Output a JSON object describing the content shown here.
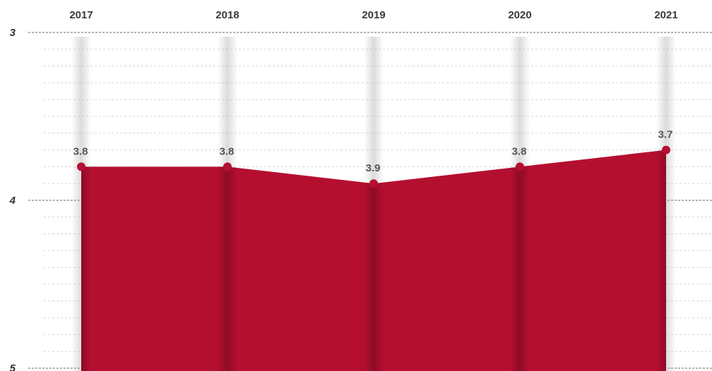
{
  "chart_data": {
    "type": "area",
    "categories": [
      "2017",
      "2018",
      "2019",
      "2020",
      "2021"
    ],
    "series": [
      {
        "values": [
          3.8,
          3.8,
          3.9,
          3.8,
          3.7
        ]
      }
    ],
    "data_labels": [
      "3.8",
      "3.8",
      "3.9",
      "3.8",
      "3.7"
    ],
    "y_ticks": [
      "3",
      "4",
      "5"
    ],
    "ylim": [
      3,
      5
    ],
    "y_inverted": true,
    "x_axis_position": "top",
    "grid": true,
    "area_color": "#b50f30",
    "marker_color": "#b50f30",
    "title": "",
    "xlabel": "",
    "ylabel": ""
  }
}
